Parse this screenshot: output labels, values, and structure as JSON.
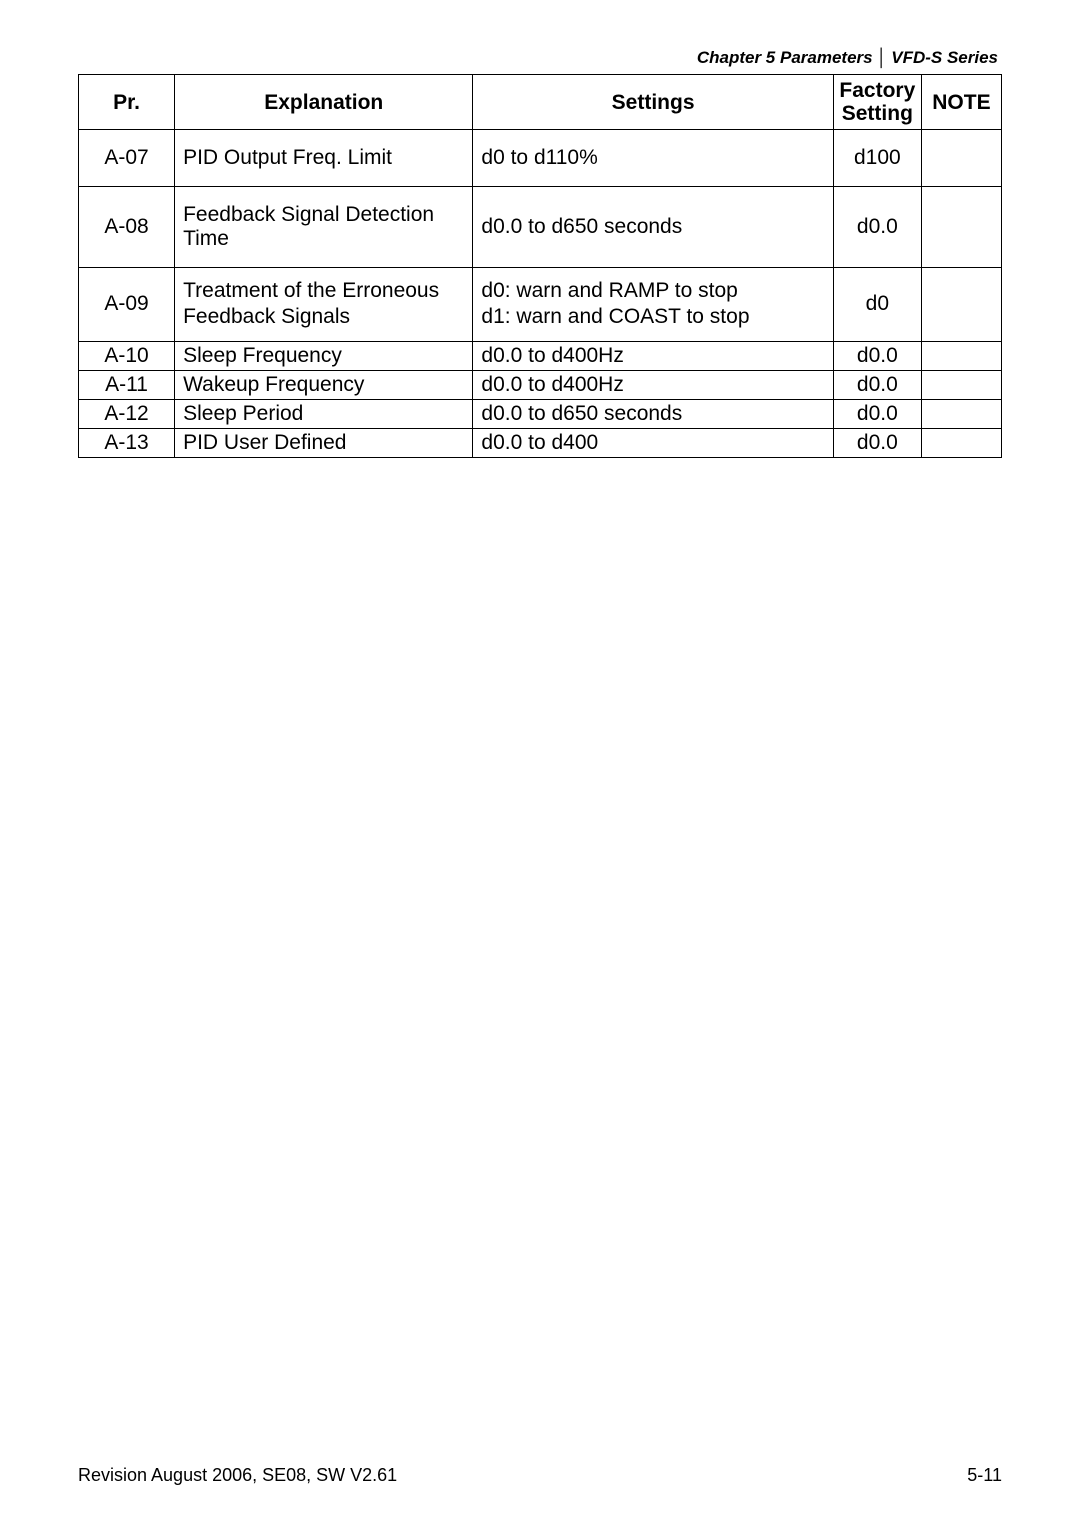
{
  "header": {
    "chapter": "Chapter 5 Parameters",
    "series": "VFD-S Series"
  },
  "table": {
    "columns": {
      "pr": "Pr.",
      "explanation": "Explanation",
      "settings": "Settings",
      "factory_l1": "Factory",
      "factory_l2": "Setting",
      "note": "NOTE"
    },
    "rows": [
      {
        "pr": "A-07",
        "exp": "PID Output Freq. Limit",
        "set": "d0 to d110%",
        "fac": "d100",
        "note": "",
        "cls": "tall"
      },
      {
        "pr": "A-08",
        "exp": "Feedback Signal Detection Time",
        "set": "d0.0 to d650 seconds",
        "fac": "d0.0",
        "note": "",
        "cls": "tall"
      },
      {
        "pr": "A-09",
        "exp_l1": "Treatment of the Erroneous",
        "exp_l2": "Feedback Signals",
        "set_l1": "d0: warn and RAMP to stop",
        "set_l2": "d1: warn and COAST to stop",
        "fac": "d0",
        "note": "",
        "cls": "med"
      },
      {
        "pr": "A-10",
        "exp": "Sleep Frequency",
        "set": "d0.0 to d400Hz",
        "fac": "d0.0",
        "note": "",
        "cls": "short"
      },
      {
        "pr": "A-11",
        "exp": "Wakeup Frequency",
        "set": "d0.0 to d400Hz",
        "fac": "d0.0",
        "note": "",
        "cls": "short"
      },
      {
        "pr": "A-12",
        "exp": "Sleep Period",
        "set": "d0.0 to d650 seconds",
        "fac": "d0.0",
        "note": "",
        "cls": "short"
      },
      {
        "pr": "A-13",
        "exp": "PID User Defined",
        "set": "d0.0 to d400",
        "fac": "d0.0",
        "note": "",
        "cls": "short"
      }
    ]
  },
  "footer": {
    "left": "Revision August 2006, SE08, SW V2.61",
    "right": "5-11"
  }
}
